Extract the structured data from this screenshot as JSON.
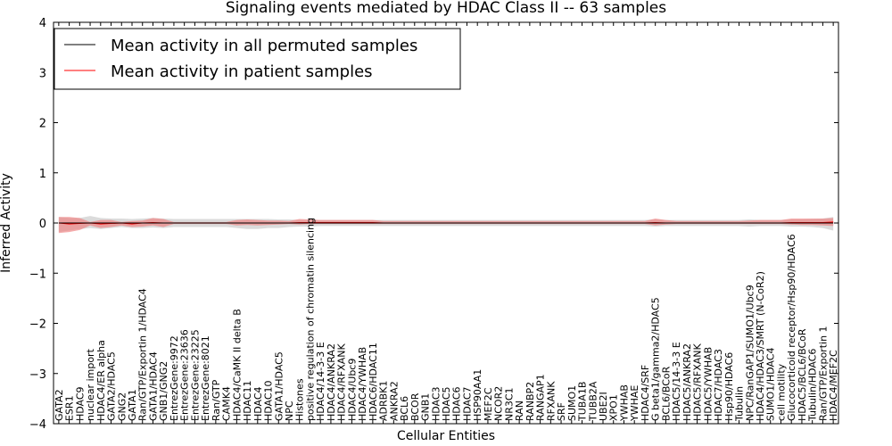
{
  "chart_data": {
    "type": "line",
    "title": "Signaling events mediated by HDAC Class II -- 63 samples",
    "xlabel": "Cellular Entities",
    "ylabel": "Inferred Activity",
    "ylim": [
      -4,
      4
    ],
    "yticks": [
      "4",
      "3",
      "2",
      "1",
      "0",
      "−1",
      "−2",
      "−3",
      "−4"
    ],
    "ytick_values": [
      4,
      3,
      2,
      1,
      0,
      -1,
      -2,
      -3,
      -4
    ],
    "legend": {
      "placement": "top-left",
      "entries": [
        {
          "label": "Mean activity in all permuted samples",
          "color": "#000000"
        },
        {
          "label": "Mean activity in patient samples",
          "color": "#ff0000"
        }
      ]
    },
    "colors": {
      "permuted_band": "#cfcfcf",
      "patient_band": "#f08080",
      "patient_line": "#ff0000",
      "permuted_line": "#000000"
    },
    "categories": [
      "GATA2",
      "ESR1",
      "HDAC9",
      "nuclear import",
      "HDAC4/ER alpha",
      "GATA2/HDAC5",
      "GNG2",
      "GATA1",
      "Ran/GTP/Exportin 1/HDAC4",
      "GATA1/HDAC4",
      "GNB1/GNG2",
      "EntrezGene:9972",
      "EntrezGene:23636",
      "EntrezGene:23225",
      "EntrezGene:8021",
      "Ran/GTP",
      "CAMK4",
      "HDAC4/CaMK II delta B",
      "HDAC11",
      "HDAC4",
      "HDAC10",
      "GATA1/HDAC5",
      "NPC",
      "Histones",
      "positive regulation of chromatin silencing",
      "HDAC4/14-3-3 E",
      "HDAC4/ANKRA2",
      "HDAC4/RFXANK",
      "HDAC4/Ubc9",
      "HDAC4/YWHAB",
      "HDAC6/HDAC11",
      "ADRBK1",
      "ANKRA2",
      "BCL6",
      "BCOR",
      "GNB1",
      "HDAC3",
      "HDAC5",
      "HDAC6",
      "HDAC7",
      "HSP90AA1",
      "MEF2C",
      "NCOR2",
      "NR3C1",
      "RAN",
      "RANBP2",
      "RANGAP1",
      "RFXANK",
      "SRF",
      "SUMO1",
      "TUBA1B",
      "TUBB2A",
      "UBE2I",
      "XPO1",
      "YWHAB",
      "YWHAE",
      "HDAC4/SRF",
      "G beta1/gamma2/HDAC5",
      "BCL6/BCoR",
      "HDAC5/14-3-3 E",
      "HDAC5/ANKRA2",
      "HDAC5/RFXANK",
      "HDAC5/YWHAB",
      "HDAC7/HDAC3",
      "Hsp90/HDAC6",
      "Tubulin",
      "NPC/RanGAP1/SUMO1/Ubc9",
      "HDAC4/HDAC3/SMRT (N-CoR2)",
      "SUMO1/HDAC4",
      "cell motility",
      "Glucocorticoid receptor/Hsp90/HDAC6",
      "HDAC5/BCL6/BCoR",
      "Tubulin/HDAC6",
      "Ran/GTP/Exportin 1",
      "HDAC4/MEF2C"
    ],
    "series": [
      {
        "name": "Mean activity in all permuted samples",
        "values": [
          0,
          0,
          0,
          0,
          0,
          0,
          0,
          0,
          0,
          0,
          0,
          0,
          0,
          0,
          0,
          0,
          0,
          0,
          0,
          0,
          0,
          0,
          0,
          0,
          0,
          0,
          0,
          0,
          0,
          0,
          0,
          0,
          0,
          0,
          0,
          0,
          0,
          0,
          0,
          0,
          0,
          0,
          0,
          0,
          0,
          0,
          0,
          0,
          0,
          0,
          0,
          0,
          0,
          0,
          0,
          0,
          0,
          0,
          0,
          0,
          0,
          0,
          0,
          0,
          0,
          0,
          0,
          0,
          0,
          0,
          0,
          0,
          0,
          0,
          0
        ],
        "band_lower": [
          -0.18,
          -0.15,
          -0.12,
          -0.1,
          -0.12,
          -0.1,
          -0.08,
          -0.1,
          -0.1,
          -0.09,
          -0.1,
          -0.08,
          -0.08,
          -0.08,
          -0.08,
          -0.08,
          -0.08,
          -0.1,
          -0.12,
          -0.12,
          -0.1,
          -0.1,
          -0.08,
          -0.07,
          -0.07,
          -0.06,
          -0.06,
          -0.06,
          -0.06,
          -0.06,
          -0.06,
          -0.06,
          -0.06,
          -0.06,
          -0.06,
          -0.06,
          -0.06,
          -0.06,
          -0.06,
          -0.06,
          -0.06,
          -0.06,
          -0.06,
          -0.06,
          -0.06,
          -0.06,
          -0.06,
          -0.06,
          -0.06,
          -0.06,
          -0.06,
          -0.06,
          -0.06,
          -0.06,
          -0.06,
          -0.06,
          -0.06,
          -0.07,
          -0.06,
          -0.06,
          -0.06,
          -0.06,
          -0.06,
          -0.06,
          -0.06,
          -0.06,
          -0.07,
          -0.06,
          -0.06,
          -0.06,
          -0.07,
          -0.07,
          -0.08,
          -0.1,
          -0.15
        ],
        "band_upper": [
          0.12,
          0.1,
          0.1,
          0.14,
          0.1,
          0.09,
          0.09,
          0.08,
          0.09,
          0.1,
          0.09,
          0.08,
          0.08,
          0.08,
          0.08,
          0.08,
          0.08,
          0.08,
          0.08,
          0.08,
          0.08,
          0.07,
          0.07,
          0.06,
          0.06,
          0.06,
          0.06,
          0.06,
          0.06,
          0.06,
          0.06,
          0.06,
          0.06,
          0.06,
          0.06,
          0.06,
          0.06,
          0.06,
          0.06,
          0.06,
          0.06,
          0.06,
          0.06,
          0.06,
          0.06,
          0.06,
          0.06,
          0.06,
          0.06,
          0.06,
          0.06,
          0.06,
          0.06,
          0.06,
          0.06,
          0.06,
          0.06,
          0.07,
          0.06,
          0.06,
          0.06,
          0.06,
          0.06,
          0.06,
          0.06,
          0.06,
          0.07,
          0.06,
          0.06,
          0.06,
          0.07,
          0.07,
          0.08,
          0.09,
          0.12
        ]
      },
      {
        "name": "Mean activity in patient samples",
        "values": [
          0.0,
          -0.02,
          -0.01,
          0.0,
          -0.02,
          -0.01,
          0.0,
          -0.02,
          0.0,
          0.01,
          0.0,
          0.0,
          0.0,
          0.0,
          0.0,
          0.0,
          0.0,
          0.0,
          0.0,
          0.0,
          0.0,
          0.0,
          0.0,
          0.01,
          0.01,
          0.01,
          0.01,
          0.01,
          0.01,
          0.01,
          0.01,
          0.0,
          0.0,
          0.0,
          0.0,
          0.0,
          0.0,
          0.0,
          0.0,
          0.0,
          0.0,
          0.0,
          0.0,
          0.0,
          0.0,
          0.0,
          0.0,
          0.0,
          0.0,
          0.0,
          0.0,
          0.0,
          0.0,
          0.0,
          0.0,
          0.0,
          0.0,
          0.01,
          0.0,
          0.0,
          0.0,
          0.0,
          0.0,
          0.0,
          0.0,
          0.0,
          0.0,
          0.0,
          0.0,
          0.0,
          0.01,
          0.01,
          0.01,
          0.01,
          0.02
        ],
        "band_lower": [
          -0.2,
          -0.18,
          -0.14,
          -0.05,
          -0.1,
          -0.08,
          -0.05,
          -0.08,
          -0.07,
          -0.05,
          -0.08,
          -0.02,
          -0.02,
          -0.02,
          -0.02,
          -0.02,
          -0.02,
          -0.05,
          -0.04,
          -0.05,
          -0.04,
          -0.03,
          -0.02,
          -0.03,
          -0.02,
          -0.02,
          -0.02,
          -0.02,
          -0.02,
          -0.02,
          -0.02,
          -0.02,
          -0.02,
          -0.02,
          -0.02,
          -0.02,
          -0.02,
          -0.02,
          -0.02,
          -0.02,
          -0.02,
          -0.02,
          -0.02,
          -0.02,
          -0.02,
          -0.02,
          -0.02,
          -0.02,
          -0.02,
          -0.02,
          -0.02,
          -0.02,
          -0.02,
          -0.02,
          -0.02,
          -0.02,
          -0.02,
          -0.05,
          -0.03,
          -0.02,
          -0.02,
          -0.02,
          -0.02,
          -0.02,
          -0.02,
          -0.02,
          -0.02,
          -0.02,
          -0.02,
          -0.02,
          -0.03,
          -0.04,
          -0.04,
          -0.05,
          -0.06
        ],
        "band_upper": [
          0.12,
          0.12,
          0.1,
          0.02,
          0.06,
          0.06,
          0.02,
          0.04,
          0.05,
          0.1,
          0.08,
          0.02,
          0.02,
          0.02,
          0.02,
          0.02,
          0.02,
          0.06,
          0.07,
          0.06,
          0.05,
          0.05,
          0.04,
          0.08,
          0.07,
          0.06,
          0.06,
          0.06,
          0.06,
          0.06,
          0.06,
          0.04,
          0.04,
          0.04,
          0.04,
          0.04,
          0.04,
          0.04,
          0.04,
          0.04,
          0.04,
          0.04,
          0.04,
          0.04,
          0.04,
          0.04,
          0.04,
          0.04,
          0.04,
          0.04,
          0.04,
          0.04,
          0.04,
          0.04,
          0.04,
          0.04,
          0.04,
          0.09,
          0.06,
          0.04,
          0.04,
          0.04,
          0.04,
          0.04,
          0.04,
          0.04,
          0.05,
          0.06,
          0.06,
          0.06,
          0.09,
          0.09,
          0.09,
          0.09,
          0.1
        ]
      }
    ]
  }
}
